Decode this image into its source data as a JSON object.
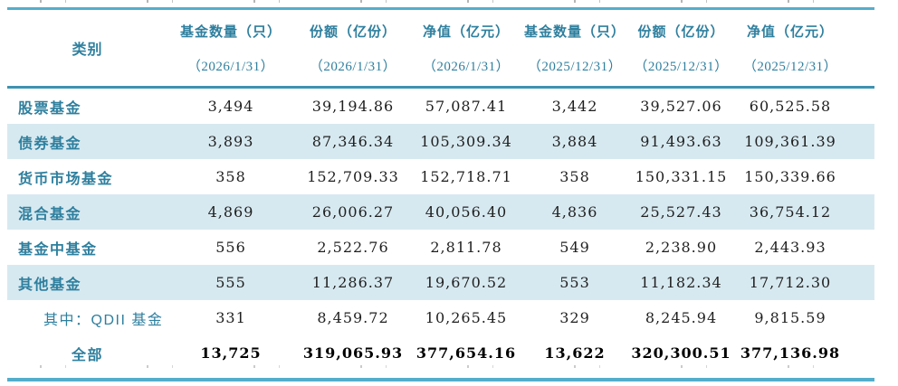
{
  "page": {
    "accent_teal": "#2e7f9e",
    "border_color": "#54adcb",
    "stripe_color": "#d7e9f0",
    "number_color": "#1f1f1f"
  },
  "table": {
    "category_header": "类别",
    "columns": [
      {
        "label": "基金数量（只）",
        "date": "（2026/1/31）"
      },
      {
        "label": "份额（亿份）",
        "date": "（2026/1/31）"
      },
      {
        "label": "净值（亿元）",
        "date": "（2026/1/31）"
      },
      {
        "label": "基金数量（只）",
        "date": "（2025/12/31）"
      },
      {
        "label": "份额（亿份）",
        "date": "（2025/12/31）"
      },
      {
        "label": "净值（亿元）",
        "date": "（2025/12/31）"
      }
    ],
    "rows": [
      {
        "type": "detail",
        "category": "股票基金",
        "values": [
          "3,494",
          "39,194.86",
          "57,087.41",
          "3,442",
          "39,527.06",
          "60,525.58"
        ]
      },
      {
        "type": "detail",
        "category": "债券基金",
        "values": [
          "3,893",
          "87,346.34",
          "105,309.34",
          "3,884",
          "91,493.63",
          "109,361.39"
        ]
      },
      {
        "type": "detail",
        "category": "货币市场基金",
        "values": [
          "358",
          "152,709.33",
          "152,718.71",
          "358",
          "150,331.15",
          "150,339.66"
        ]
      },
      {
        "type": "detail",
        "category": "混合基金",
        "values": [
          "4,869",
          "26,006.27",
          "40,056.40",
          "4,836",
          "25,527.43",
          "36,754.12"
        ]
      },
      {
        "type": "detail",
        "category": "基金中基金",
        "values": [
          "556",
          "2,522.76",
          "2,811.78",
          "549",
          "2,238.90",
          "2,443.93"
        ]
      },
      {
        "type": "detail",
        "category": "其他基金",
        "values": [
          "555",
          "11,286.37",
          "19,670.52",
          "553",
          "11,182.34",
          "17,712.30"
        ]
      },
      {
        "type": "sub_item",
        "category": "其中：QDII 基金",
        "values": [
          "331",
          "8,459.72",
          "10,265.45",
          "329",
          "8,245.94",
          "9,815.59"
        ]
      },
      {
        "type": "total",
        "category": "全部",
        "values": [
          "13,725",
          "319,065.93",
          "377,654.16",
          "13,622",
          "320,300.51",
          "377,136.98"
        ]
      }
    ]
  }
}
